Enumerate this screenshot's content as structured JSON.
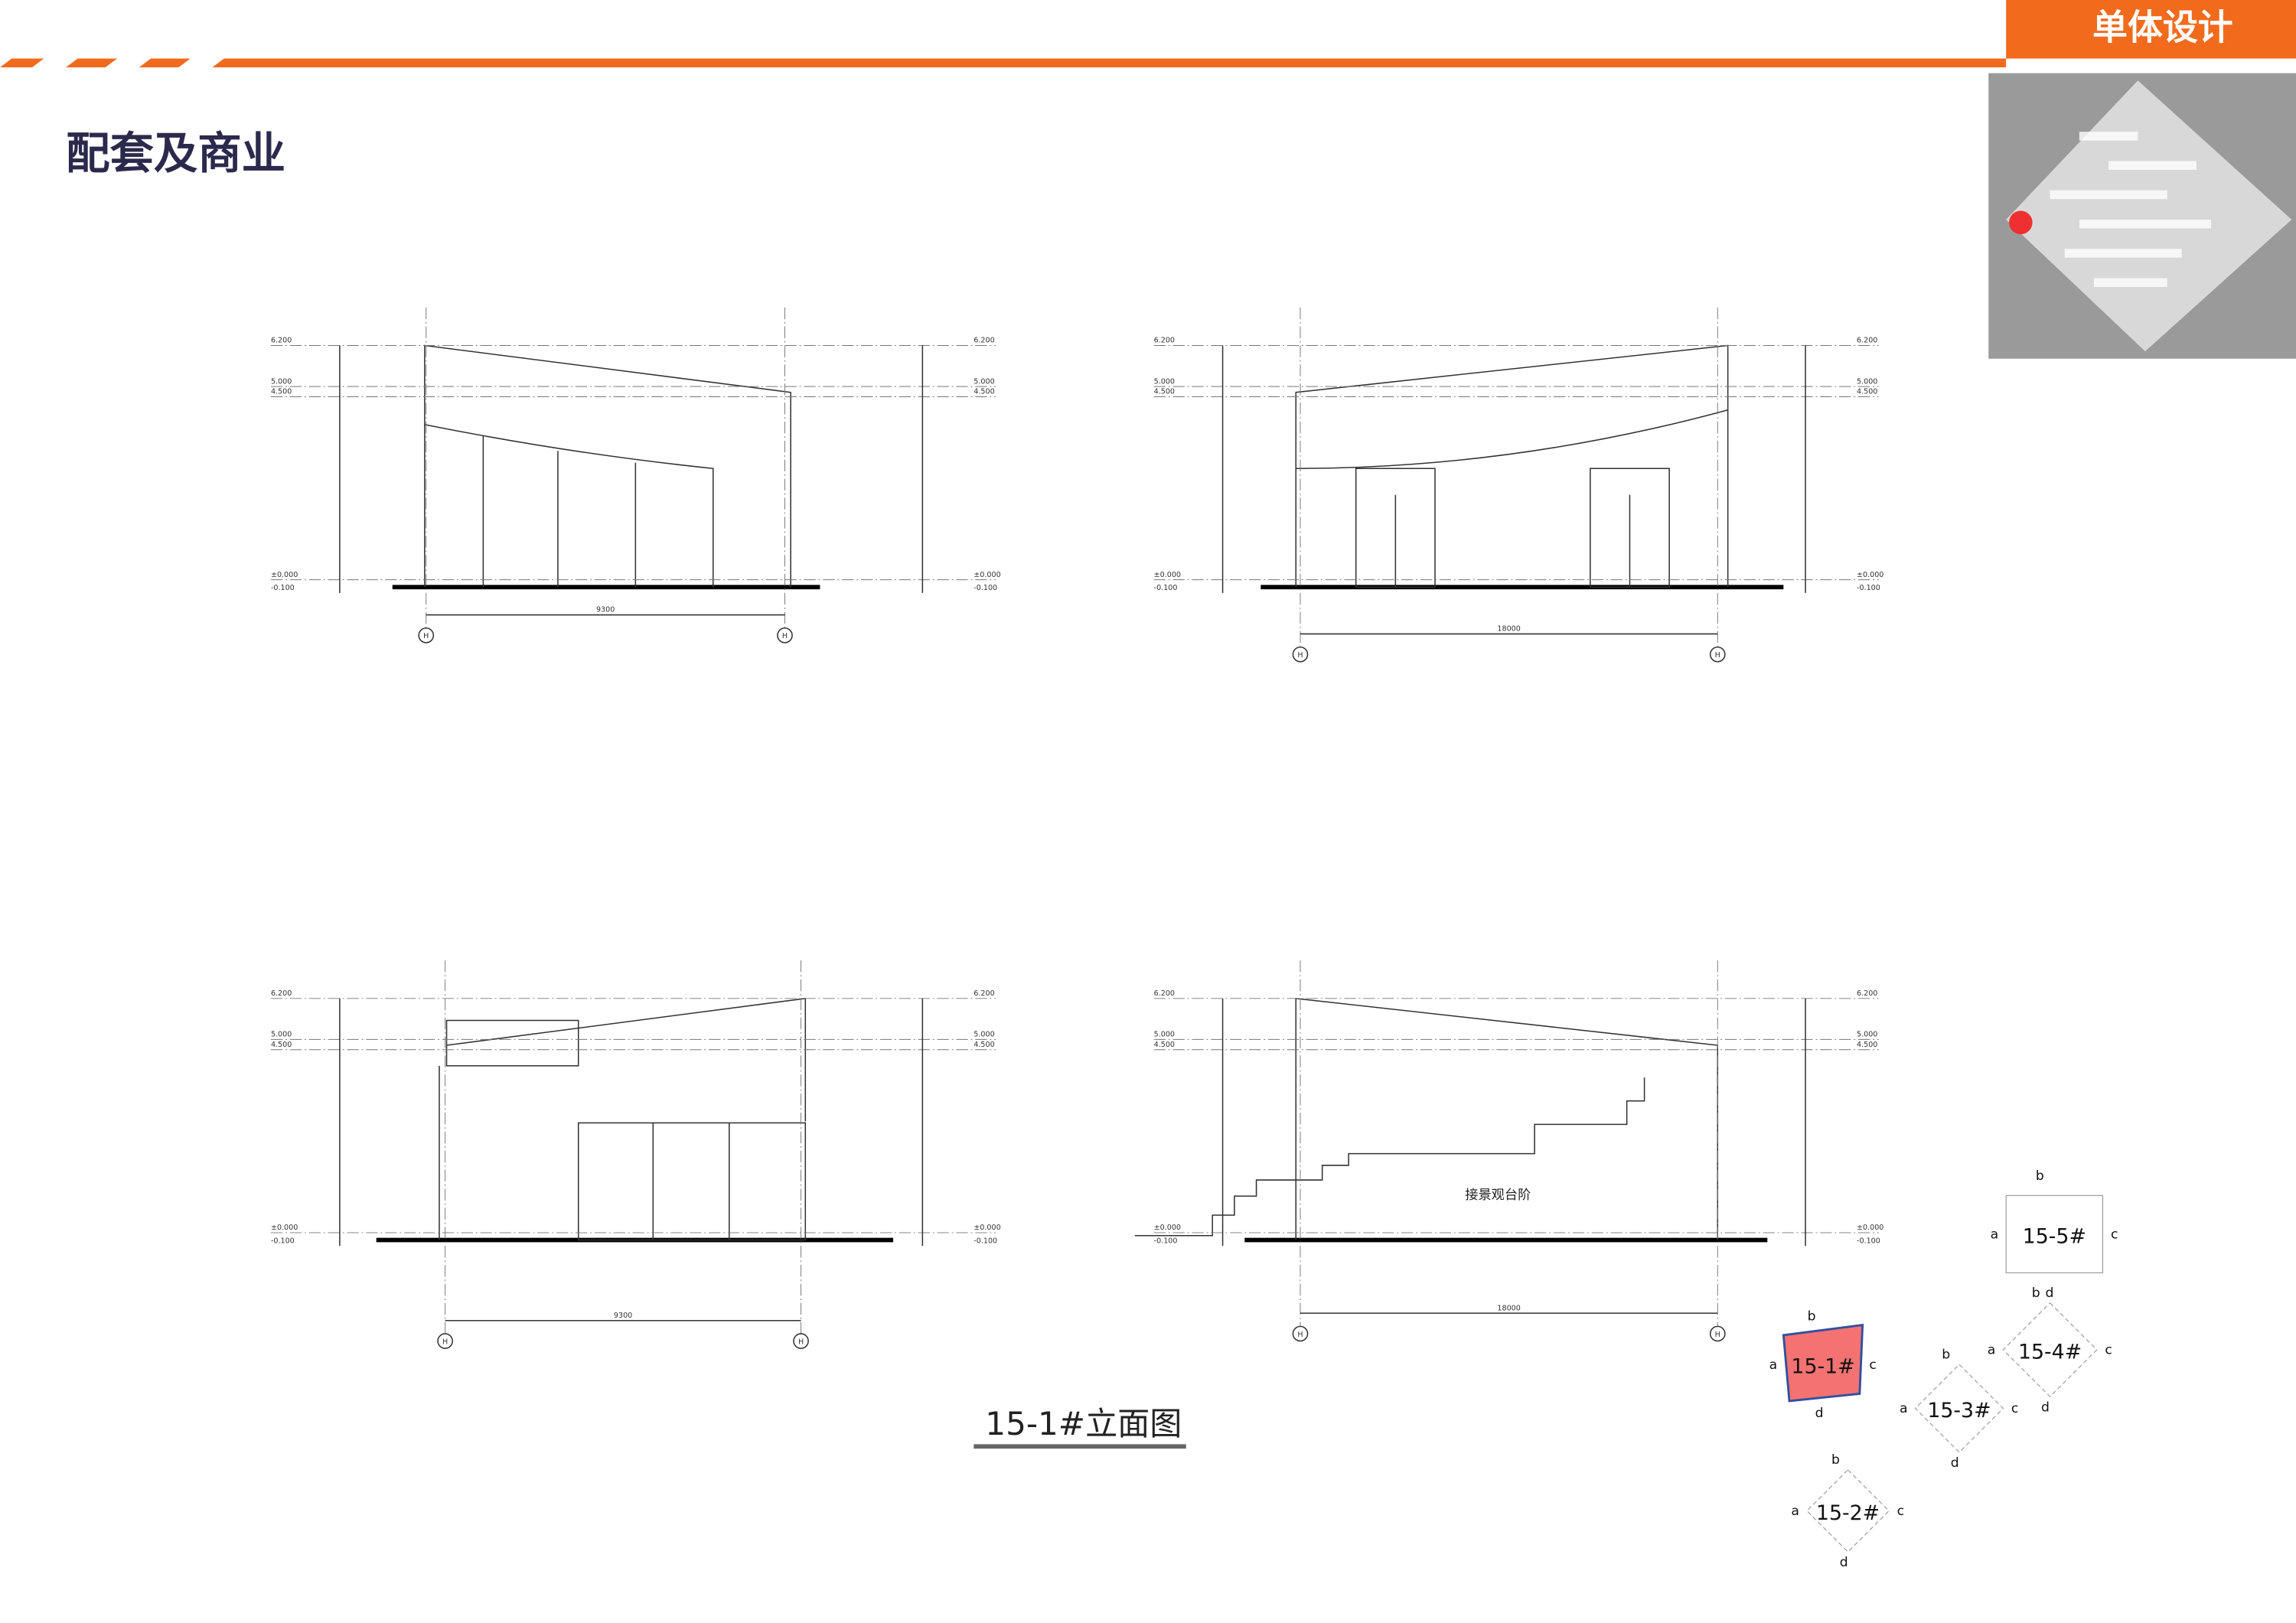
{
  "header": {
    "badge": "单体设计",
    "title": "配套及商业"
  },
  "elevations": {
    "levels": [
      "6.200",
      "5.000",
      "4.500",
      "±0.000",
      "-0.100"
    ],
    "grid_axis": "H",
    "drawings": [
      {
        "span": "9300"
      },
      {
        "span": "18000"
      },
      {
        "span": "9300"
      },
      {
        "span": "18000",
        "annotation": "接景观台阶"
      }
    ]
  },
  "caption": "15-1#立面图",
  "key_plan": {
    "buildings": [
      {
        "label": "15-1#",
        "sides": [
          "a",
          "b",
          "c",
          "d"
        ]
      },
      {
        "label": "15-2#",
        "sides": [
          "a",
          "b",
          "c",
          "d"
        ]
      },
      {
        "label": "15-3#",
        "sides": [
          "a",
          "b",
          "c",
          "d"
        ]
      },
      {
        "label": "15-4#",
        "sides": [
          "a",
          "b",
          "c",
          "d"
        ]
      },
      {
        "label": "15-5#",
        "sides": [
          "a",
          "b",
          "c",
          "d"
        ]
      }
    ]
  }
}
